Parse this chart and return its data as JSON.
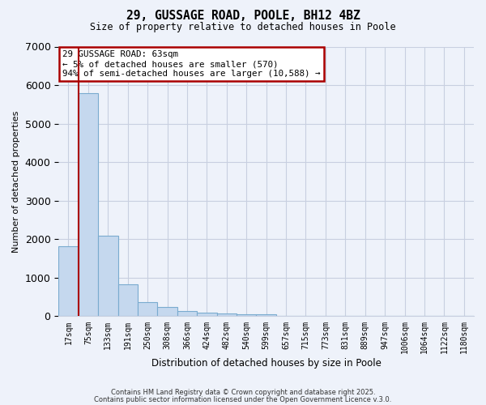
{
  "title1": "29, GUSSAGE ROAD, POOLE, BH12 4BZ",
  "title2": "Size of property relative to detached houses in Poole",
  "xlabel": "Distribution of detached houses by size in Poole",
  "ylabel": "Number of detached properties",
  "annotation_title": "29 GUSSAGE ROAD: 63sqm",
  "annotation_line2": "← 5% of detached houses are smaller (570)",
  "annotation_line3": "94% of semi-detached houses are larger (10,588) →",
  "bar_labels": [
    "17sqm",
    "75sqm",
    "133sqm",
    "191sqm",
    "250sqm",
    "308sqm",
    "366sqm",
    "424sqm",
    "482sqm",
    "540sqm",
    "599sqm",
    "657sqm",
    "715sqm",
    "773sqm",
    "831sqm",
    "889sqm",
    "947sqm",
    "1006sqm",
    "1064sqm",
    "1122sqm",
    "1180sqm"
  ],
  "bar_values": [
    1820,
    5800,
    2100,
    840,
    360,
    240,
    145,
    95,
    80,
    60,
    50,
    0,
    0,
    0,
    0,
    0,
    0,
    0,
    0,
    0,
    0
  ],
  "bar_color": "#c5d8ee",
  "bar_edge_color": "#7aabcf",
  "vline_x": 0.5,
  "vline_color": "#aa0000",
  "ylim": [
    0,
    7000
  ],
  "yticks": [
    0,
    1000,
    2000,
    3000,
    4000,
    5000,
    6000,
    7000
  ],
  "bg_color": "#eef2fa",
  "grid_color": "#c8cfe0",
  "annotation_box_color": "#ffffff",
  "annotation_border_color": "#aa0000",
  "footer1": "Contains HM Land Registry data © Crown copyright and database right 2025.",
  "footer2": "Contains public sector information licensed under the Open Government Licence v.3.0."
}
